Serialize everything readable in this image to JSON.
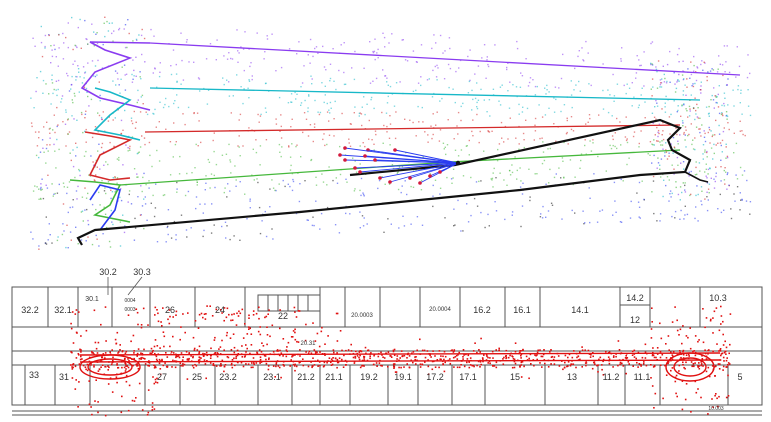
{
  "colors": {
    "violet": "#8a3cf0",
    "cyan": "#18b8c8",
    "red": "#d42a2a",
    "green": "#46b83c",
    "black": "#111111",
    "blue_fan": "#2a3cf0",
    "fan_point": "#d4183c",
    "scan_red": "#e01010",
    "wall": "#555555"
  },
  "floor_plan": {
    "top_rooms": [
      {
        "id": "r32-2",
        "label": "32.2"
      },
      {
        "id": "r32-1",
        "label": "32.1"
      },
      {
        "id": "r30-1",
        "label": "30.1"
      },
      {
        "id": "r26",
        "label": "26"
      },
      {
        "id": "r24",
        "label": "24"
      },
      {
        "id": "r22",
        "label": "22"
      },
      {
        "id": "r20-0003",
        "label": "20.0003"
      },
      {
        "id": "r20-0004",
        "label": "20.0004"
      },
      {
        "id": "r16-2",
        "label": "16.2"
      },
      {
        "id": "r16-1",
        "label": "16.1"
      },
      {
        "id": "r14-1",
        "label": "14.1"
      },
      {
        "id": "r14-2",
        "label": "14.2"
      },
      {
        "id": "r12",
        "label": "12"
      },
      {
        "id": "r10-3",
        "label": "10.3"
      }
    ],
    "bottom_rooms": [
      {
        "id": "r33",
        "label": "33"
      },
      {
        "id": "r31",
        "label": "31"
      },
      {
        "id": "r27",
        "label": "27"
      },
      {
        "id": "r25",
        "label": "25"
      },
      {
        "id": "r23-2",
        "label": "23.2"
      },
      {
        "id": "r23-1",
        "label": "23.1"
      },
      {
        "id": "r21-2",
        "label": "21.2"
      },
      {
        "id": "r21-1",
        "label": "21.1"
      },
      {
        "id": "r19-2",
        "label": "19.2"
      },
      {
        "id": "r19-1",
        "label": "19.1"
      },
      {
        "id": "r17-2",
        "label": "17.2"
      },
      {
        "id": "r17-1",
        "label": "17.1"
      },
      {
        "id": "r15",
        "label": "15"
      },
      {
        "id": "r13",
        "label": "13"
      },
      {
        "id": "r11-2",
        "label": "11.2"
      },
      {
        "id": "r11-1",
        "label": "11.1"
      },
      {
        "id": "r5",
        "label": "5"
      }
    ],
    "callouts": [
      {
        "id": "c30-2",
        "label": "30.2"
      },
      {
        "id": "c30-3",
        "label": "30.3"
      }
    ],
    "small_labels": [
      {
        "id": "s20-21",
        "label": "20.31"
      },
      {
        "id": "s0004a",
        "label": "0004"
      },
      {
        "id": "s0004b",
        "label": "0003"
      },
      {
        "id": "s-bottom",
        "label": "10.003"
      }
    ]
  }
}
